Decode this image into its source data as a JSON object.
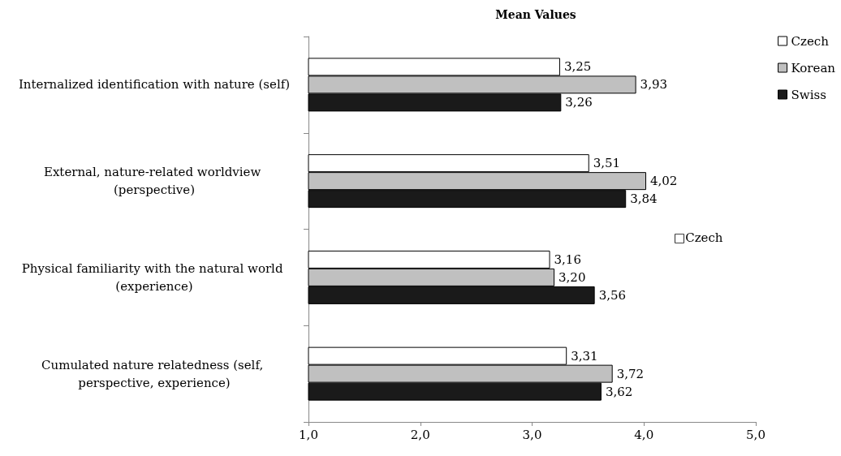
{
  "chart_data": {
    "type": "bar",
    "orientation": "horizontal",
    "title": "Mean Values",
    "categories": [
      "Internalized identification with nature (self)",
      "External, nature-related worldview (perspective)",
      "Physical familiarity with the natural world (experience)",
      "Cumulated nature relatedness (self, perspective, experience)"
    ],
    "series": [
      {
        "name": "Czech",
        "color": "#ffffff",
        "values": [
          3.25,
          3.51,
          3.16,
          3.31
        ],
        "value_labels": [
          "3,25",
          "3,51",
          "3,16",
          "3,31"
        ]
      },
      {
        "name": "Korean",
        "color": "#c0c0c0",
        "values": [
          3.93,
          4.02,
          3.2,
          3.72
        ],
        "value_labels": [
          "3,93",
          "4,02",
          "3,20",
          "3,72"
        ]
      },
      {
        "name": "Swiss",
        "color": "#1a1a1a",
        "values": [
          3.26,
          3.84,
          3.56,
          3.62
        ],
        "value_labels": [
          "3,26",
          "3,84",
          "3,56",
          "3,62"
        ]
      }
    ],
    "xlim": [
      1,
      5
    ],
    "xticks": [
      {
        "value": 1,
        "label": "1,0"
      },
      {
        "value": 2,
        "label": "2,0"
      },
      {
        "value": 3,
        "label": "3,0"
      },
      {
        "value": 4,
        "label": "4,0"
      },
      {
        "value": 5,
        "label": "5,0"
      }
    ],
    "grid": false,
    "legend": "top right",
    "annotations": [
      "□Czech"
    ]
  }
}
